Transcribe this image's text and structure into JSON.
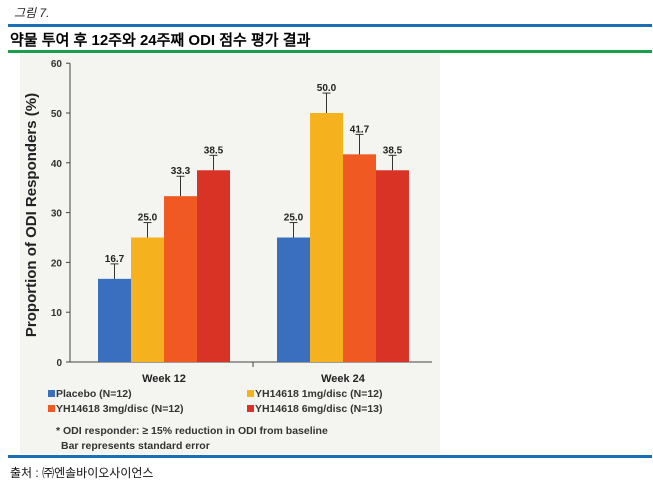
{
  "figure_label": "그림 7.",
  "title": "약물 투여 후 12주와 24주째 ODI 점수 평가 결과",
  "source": "출처 : ㈜엔솔바이오사이언스",
  "chart_data": {
    "type": "bar",
    "ylabel": "Proportion of ODI Responders (%)",
    "ylim": [
      0,
      60
    ],
    "yticks": [
      "0",
      "10",
      "20",
      "30",
      "40",
      "50",
      "60"
    ],
    "categories": [
      "Week 12",
      "Week 24"
    ],
    "series": [
      {
        "name": "Placebo (N=12)",
        "color": "#3a6fc0",
        "values": [
          16.7,
          25.0
        ],
        "labels": [
          "16.7",
          "25.0"
        ],
        "errors": [
          3,
          3
        ]
      },
      {
        "name": "YH14618 1mg/disc (N=12)",
        "color": "#f5b21e",
        "values": [
          25.0,
          50.0
        ],
        "labels": [
          "25.0",
          "50.0"
        ],
        "errors": [
          3,
          4
        ]
      },
      {
        "name": "YH14618 3mg/disc (N=12)",
        "color": "#f05a22",
        "values": [
          33.3,
          41.7
        ],
        "labels": [
          "33.3",
          "41.7"
        ],
        "errors": [
          4,
          4
        ]
      },
      {
        "name": "YH14618 6mg/disc (N=13)",
        "color": "#d93326",
        "values": [
          38.5,
          38.5
        ],
        "labels": [
          "38.5",
          "38.5"
        ],
        "errors": [
          3,
          3
        ]
      }
    ],
    "notes": [
      "* ODI responder: ≥ 15% reduction in ODI from baseline",
      "Bar represents standard error"
    ]
  }
}
